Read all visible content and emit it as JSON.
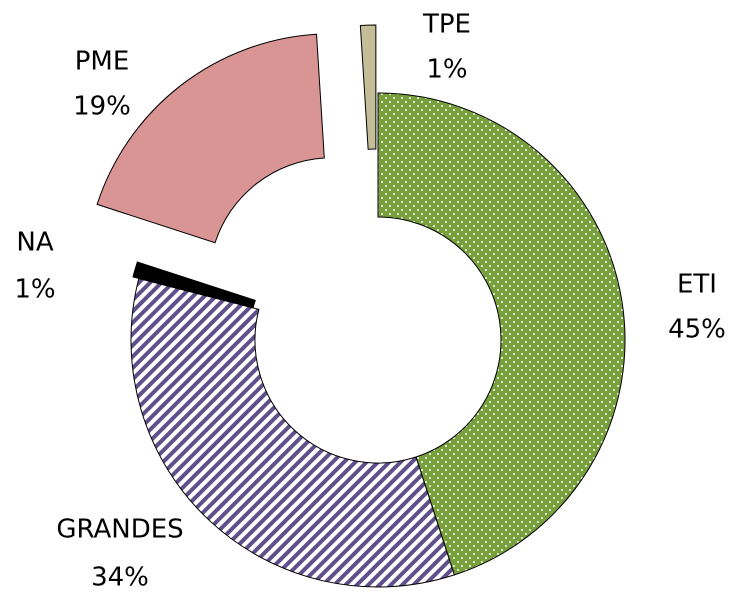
{
  "chart_data": {
    "type": "donut",
    "categories": [
      "ETI",
      "GRANDES",
      "NA",
      "PME",
      "TPE"
    ],
    "values": [
      45,
      34,
      1,
      19,
      1
    ],
    "value_labels": [
      "45%",
      "34%",
      "1%",
      "19%",
      "1%"
    ],
    "colors": [
      "#77a03c",
      "#5f4f8a",
      "#000000",
      "#d99594",
      "#c4bd97"
    ]
  }
}
